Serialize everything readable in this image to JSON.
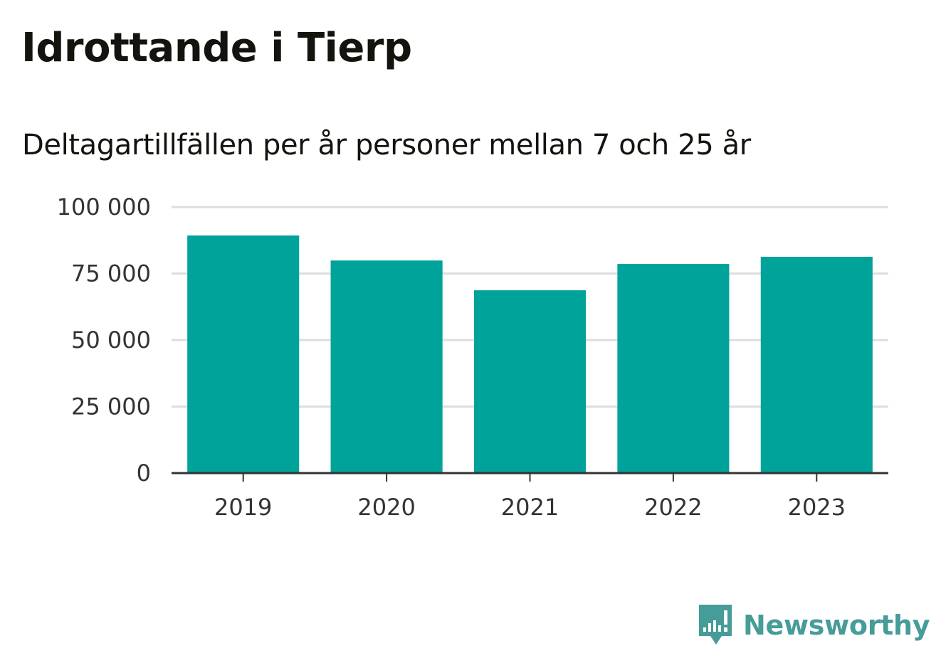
{
  "title": "Idrottande i Tierp",
  "subtitle": "Deltagartillfällen per år personer mellan 7 och 25 år",
  "brand": {
    "name": "Newsworthy",
    "icon": "newsworthy-logo-icon",
    "color": "#469c98"
  },
  "chart_data": {
    "type": "bar",
    "title": "Idrottande i Tierp",
    "subtitle": "Deltagartillfällen per år personer mellan 7 och 25 år",
    "xlabel": "",
    "ylabel": "",
    "categories": [
      "2019",
      "2020",
      "2021",
      "2022",
      "2023"
    ],
    "values": [
      89300,
      79900,
      68700,
      78600,
      81300
    ],
    "ylim": [
      0,
      100000
    ],
    "yticks": [
      0,
      25000,
      50000,
      75000,
      100000
    ],
    "ytick_labels": [
      "0",
      "25 000",
      "50 000",
      "75 000",
      "100 000"
    ],
    "bar_color": "#00a39a",
    "grid": true,
    "legend": "none"
  }
}
